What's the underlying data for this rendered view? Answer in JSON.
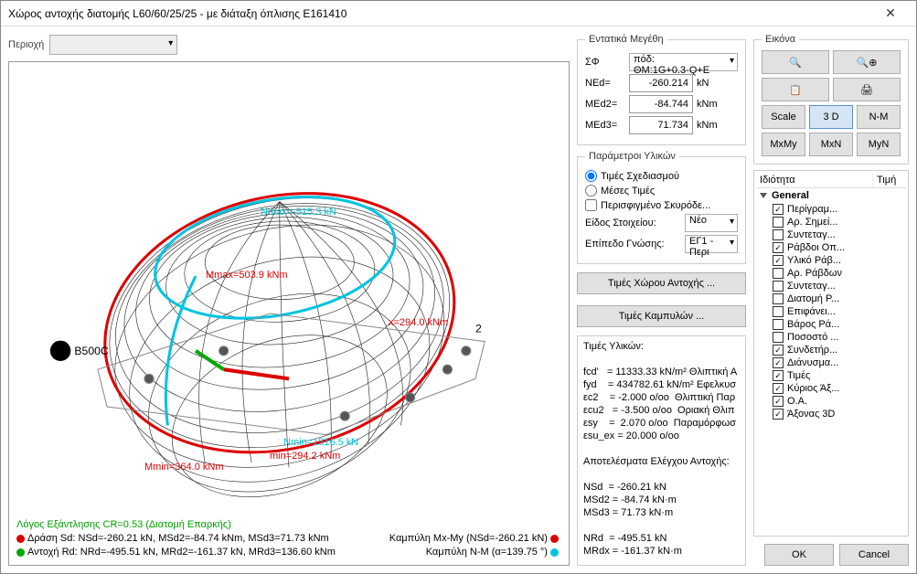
{
  "title": "Χώρος αντοχής διατομής L60/60/25/25 - με διάταξη όπλισης E161410",
  "region_label": "Περιοχή",
  "region_value": "",
  "canvas": {
    "material_label": "B500C",
    "dim2_label": "2",
    "nmax_label": "Nmax=-515.3 kN",
    "mmax_label": "Mmax=503.9 kNm",
    "mx_label": "x=294.0 kNm",
    "nlabel2": "Nmin=1516.5 kN",
    "min_label2": "min=294.2 kNm",
    "mmin_label": "Mmin=364.0 kNm",
    "legend_cr": "Λόγος Εξάντλησης CR=0.53  (Διατομή Επαρκής)",
    "legend_sd": "Δράση  Sd: NSd=-260.21 kN,  MSd2=-84.74 kNm,  MSd3=71.73 kNm",
    "legend_rd": "Αντοχή Rd: NRd=-495.51 kN,  MRd2=-161.37 kN,  MRd3=136.60 kNm",
    "legend_mxy": "Καμπύλη Mx-My (NSd=-260.21 kN)",
    "legend_nm": "Καμπύλη N-M (α=139.75 °)"
  },
  "forces": {
    "legend": "Εντατικά Μεγέθη",
    "combo_label": "ΣΦ",
    "combo_value": "πόδ: ΘM:1G+0.3·Q+E",
    "ned_label": "NEd=",
    "ned_value": "-260.214",
    "med2_label": "MEd2=",
    "med2_value": "-84.744",
    "med3_label": "MEd3=",
    "med3_value": "71.734",
    "kn": "kN",
    "knm": "kNm"
  },
  "materials": {
    "legend": "Παράμετροι Υλικών",
    "r1": "Τιμές Σχεδιασμού",
    "r2": "Μέσες Τιμές",
    "chk": "Περισφιγμένο Σκυρόδε...",
    "type_label": "Είδος Στοιχείου:",
    "type_value": "Νέο",
    "knowledge_label": "Επίπεδο Γνώσης:",
    "knowledge_value": "ΕΓ1 - Περι"
  },
  "btn_space": "Τιμές Χώρου Αντοχής ...",
  "btn_curves": "Τιμές Καμπυλών ...",
  "matvals": {
    "title": "Τιμές Υλικών:",
    "l1": "fcd'   = 11333.33 kN/m² Θλιπτική Α",
    "l2": "fyd    = 434782.61 kN/m² Εφελκυσ",
    "l3": "εc2    = -2.000 o/oo  Θλιπτική Παρ",
    "l4": "εcu2   = -3.500 o/oo  Οριακή Θλιπ",
    "l5": "εsy    =  2.070 o/oo  Παραμόρφωσ",
    "l6": "εsu_ex = 20.000 o/oo",
    "res_title": "Αποτελέσματα Ελέγχου Αντοχής:",
    "r1": "NSd  = -260.21 kN",
    "r2": "MSd2 = -84.74 kN·m",
    "r3": "MSd3 = 71.73 kN·m",
    "r4": "NRd  = -495.51 kN",
    "r5": "MRdx = -161.37 kN·m"
  },
  "image": {
    "legend": "Εικόνα",
    "scale": "Scale",
    "d3": "3 D",
    "nm": "N-M",
    "mxmy": "MxMy",
    "mxn": "MxN",
    "myn": "MyN"
  },
  "tree": {
    "h1": "Ιδιότητα",
    "h2": "Τιμή",
    "root": "General",
    "items": [
      {
        "label": "Περίγραμ...",
        "checked": true
      },
      {
        "label": "Αρ. Σημεί...",
        "checked": false
      },
      {
        "label": "Συντεταγ...",
        "checked": false
      },
      {
        "label": "Ράβδοι Οπ...",
        "checked": true
      },
      {
        "label": "Υλικό Ράβ...",
        "checked": true
      },
      {
        "label": "Αρ. Ράβδων",
        "checked": false
      },
      {
        "label": "Συντεταγ...",
        "checked": false
      },
      {
        "label": "Διατομή Ρ...",
        "checked": false
      },
      {
        "label": "Επιφάνει...",
        "checked": false
      },
      {
        "label": "Βάρος Ρά...",
        "checked": false
      },
      {
        "label": "Ποσοστό ...",
        "checked": false
      },
      {
        "label": "Συνδετήρ...",
        "checked": true
      },
      {
        "label": "Διάνυσμα...",
        "checked": true
      },
      {
        "label": "Τιμές",
        "checked": true
      },
      {
        "label": "Κύριος Άξ...",
        "checked": true
      },
      {
        "label": "O.A.",
        "checked": true
      },
      {
        "label": "Άξονας 3D",
        "checked": true
      }
    ]
  },
  "ok": "OK",
  "cancel": "Cancel"
}
